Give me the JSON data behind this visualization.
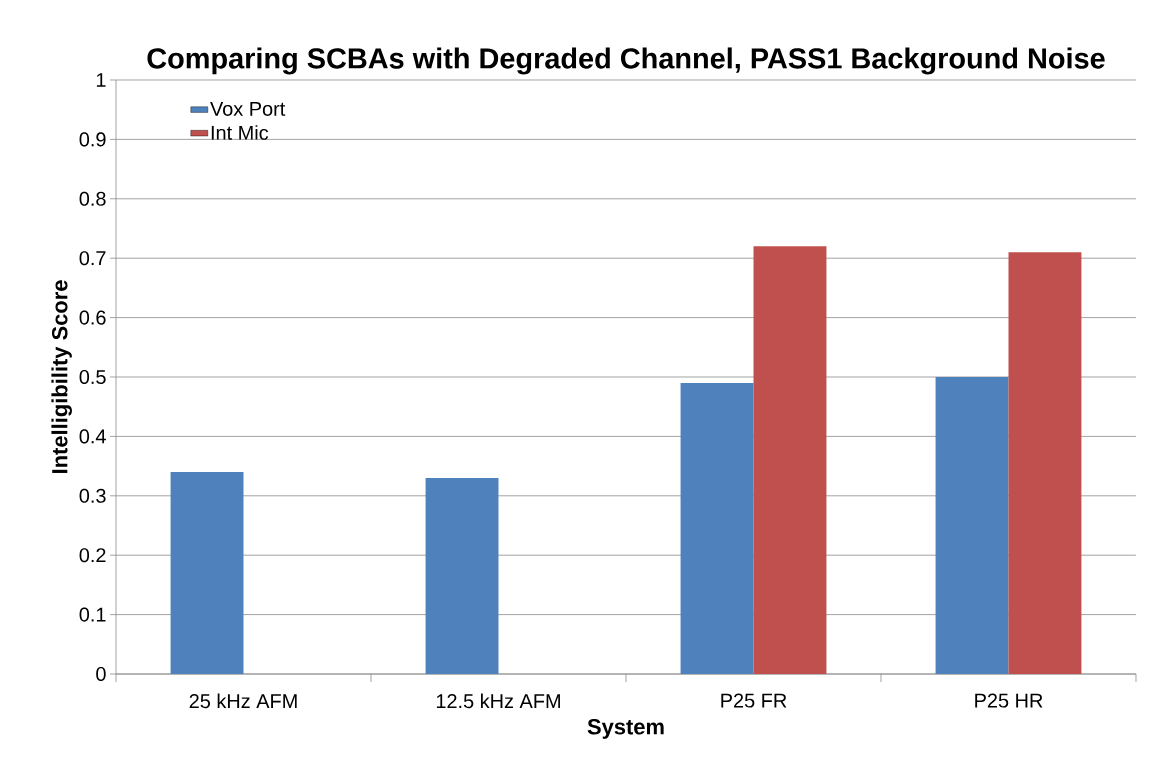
{
  "chart_data": {
    "type": "bar",
    "title": "Comparing SCBAs with Degraded Channel, PASS1 Background Noise",
    "xlabel": "System",
    "ylabel": "Intelligibility Score",
    "categories": [
      "25 kHz AFM",
      "12.5 kHz AFM",
      "P25 FR",
      "P25 HR"
    ],
    "series": [
      {
        "name": "Vox Port",
        "color": "#4f81bd",
        "values": [
          0.34,
          0.33,
          0.49,
          0.5
        ]
      },
      {
        "name": "Int Mic",
        "color": "#c0504d",
        "values": [
          null,
          null,
          0.72,
          0.71
        ]
      }
    ],
    "ylim": [
      0,
      1
    ],
    "yticks": [
      0,
      0.1,
      0.2,
      0.3,
      0.4,
      0.5,
      0.6,
      0.7,
      0.8,
      0.9,
      1
    ],
    "grid": "y",
    "legend": "top left"
  }
}
